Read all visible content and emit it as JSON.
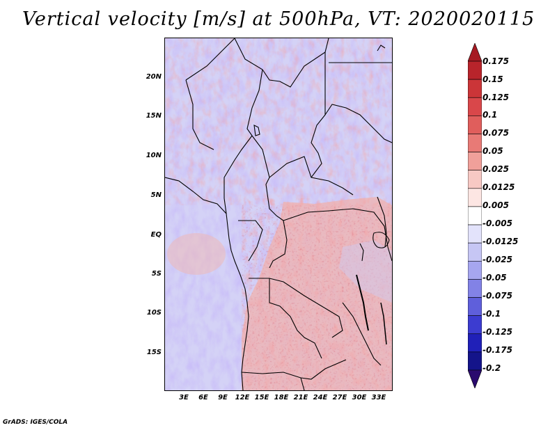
{
  "title": "Vertical velocity [m/s] at 500hPa, VT: 2020020115",
  "credit": "GrADS: IGES/COLA",
  "lat_labels": [
    "20N",
    "15N",
    "10N",
    "5N",
    "EQ",
    "5S",
    "10S",
    "15S"
  ],
  "lon_labels": [
    "3E",
    "6E",
    "9E",
    "12E",
    "15E",
    "18E",
    "21E",
    "24E",
    "27E",
    "30E",
    "33E"
  ],
  "colorbar": {
    "levels": [
      "0.175",
      "0.15",
      "0.125",
      "0.1",
      "0.075",
      "0.05",
      "0.025",
      "0.0125",
      "0.005",
      "-0.005",
      "-0.0125",
      "-0.025",
      "-0.05",
      "-0.075",
      "-0.1",
      "-0.125",
      "-0.175",
      "-0.2"
    ],
    "colors": [
      "#a61a22",
      "#b8242b",
      "#cb3538",
      "#d9474a",
      "#e05e5c",
      "#e87a76",
      "#f0a09a",
      "#f7c9c4",
      "#fde6e3",
      "#ffffff",
      "#e3e3fb",
      "#c6c6f4",
      "#a6a6ef",
      "#8282e6",
      "#5f5fdb",
      "#3c3cd0",
      "#2020b8",
      "#14148a",
      "#2a0a6e"
    ]
  }
}
